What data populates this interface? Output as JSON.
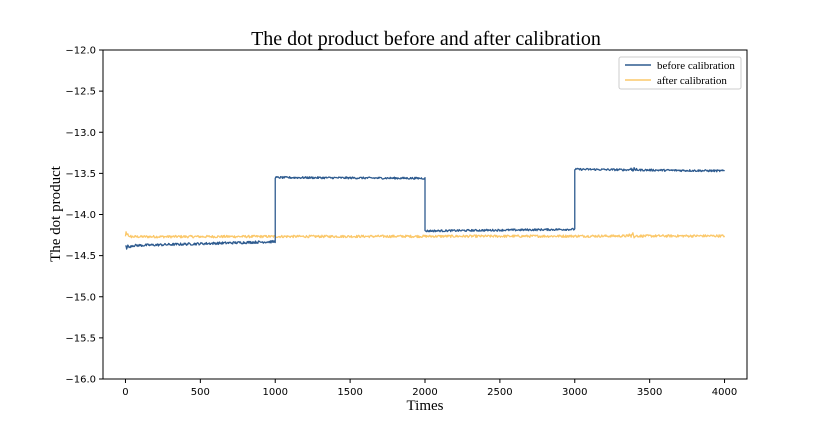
{
  "chart_data": {
    "type": "line",
    "title": "The dot product before and after calibration",
    "xlabel": "Times",
    "ylabel": "The dot product",
    "xlim": [
      -150,
      4150
    ],
    "ylim": [
      -16.0,
      -12.0
    ],
    "xticks": [
      0,
      500,
      1000,
      1500,
      2000,
      2500,
      3000,
      3500,
      4000
    ],
    "xtick_labels": [
      "0",
      "500",
      "1000",
      "1500",
      "2000",
      "2500",
      "3000",
      "3500",
      "4000"
    ],
    "yticks": [
      -12.0,
      -12.5,
      -13.0,
      -13.5,
      -14.0,
      -14.5,
      -15.0,
      -15.5,
      -16.0
    ],
    "ytick_labels": [
      "−12.0",
      "−12.5",
      "−13.0",
      "−13.5",
      "−14.0",
      "−14.5",
      "−15.0",
      "−15.5",
      "−16.0"
    ],
    "grid": false,
    "legend_position": "top-right",
    "series": [
      {
        "name": "before calibration",
        "color": "#2e5b8f",
        "segments": [
          {
            "x_start": 0,
            "x_end": 1000,
            "y_start": -14.38,
            "y_end": -14.33,
            "noise": 0.015
          },
          {
            "x_start": 1000,
            "x_end": 2000,
            "y_start": -13.55,
            "y_end": -13.56,
            "noise": 0.012
          },
          {
            "x_start": 2000,
            "x_end": 3000,
            "y_start": -14.2,
            "y_end": -14.18,
            "noise": 0.012
          },
          {
            "x_start": 3000,
            "x_end": 4000,
            "y_start": -13.45,
            "y_end": -13.47,
            "noise": 0.012
          }
        ],
        "spikes": [
          {
            "x": 0,
            "y": -14.45
          },
          {
            "x": 3380,
            "y": -13.4
          }
        ]
      },
      {
        "name": "after calibration",
        "color": "#fbc86a",
        "segments": [
          {
            "x_start": 0,
            "x_end": 4000,
            "y_start": -14.27,
            "y_end": -14.26,
            "noise": 0.015
          }
        ],
        "spikes": [
          {
            "x": 0,
            "y": -14.18
          },
          {
            "x": 3380,
            "y": -14.2
          }
        ]
      }
    ]
  }
}
